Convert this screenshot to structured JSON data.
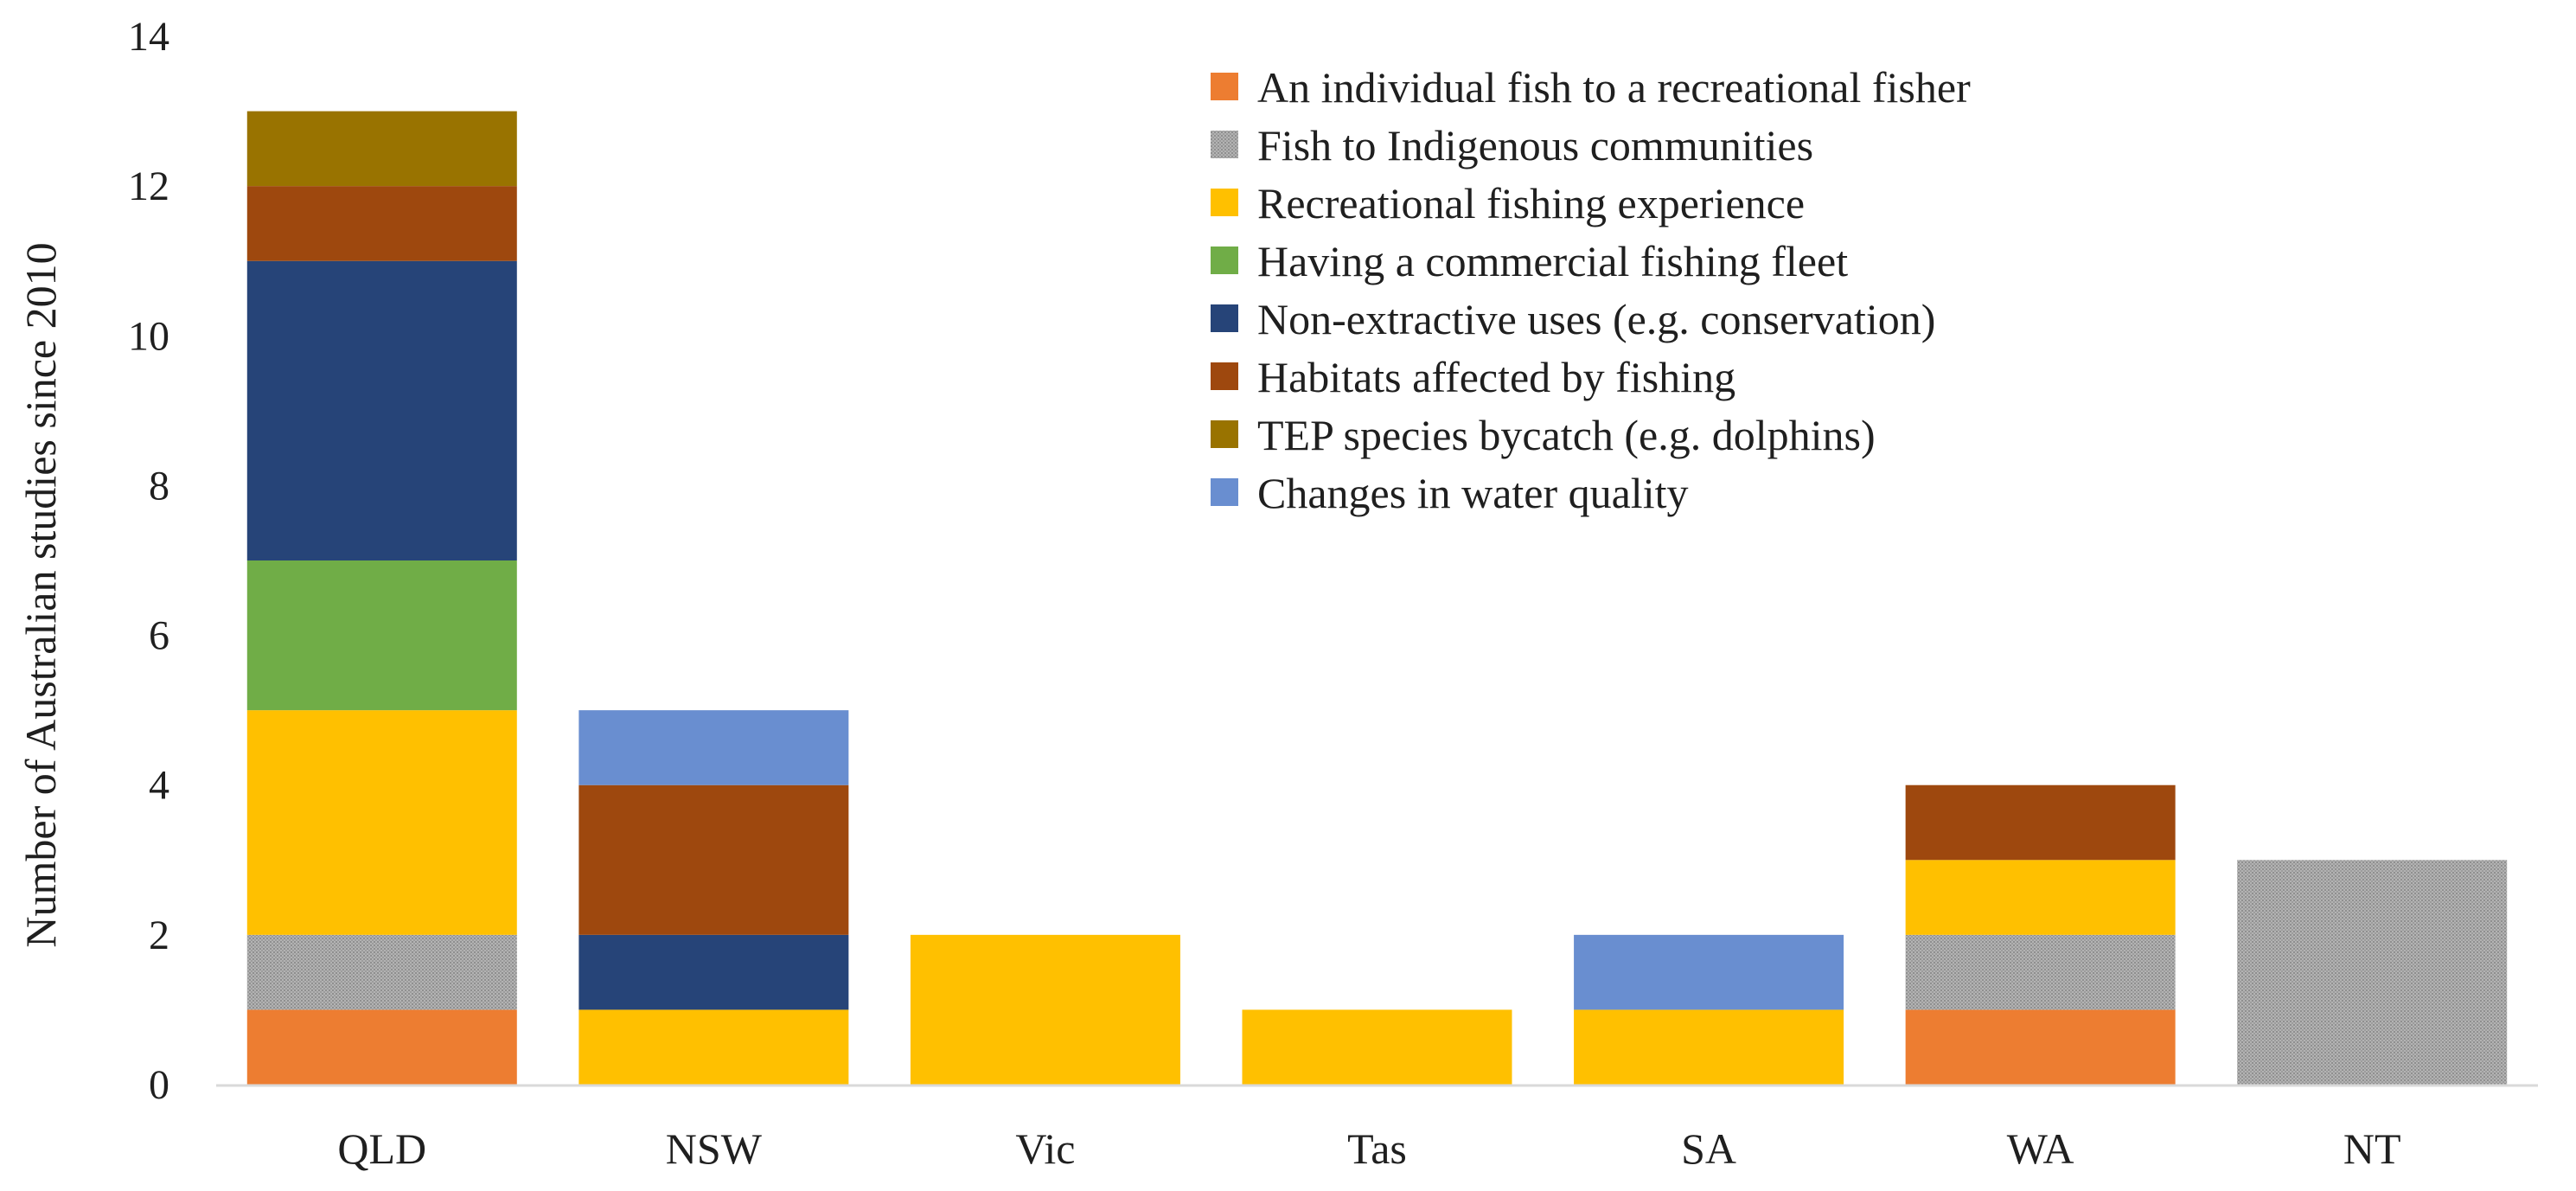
{
  "chart_data": {
    "type": "bar",
    "stacked": true,
    "categories": [
      "QLD",
      "NSW",
      "Vic",
      "Tas",
      "SA",
      "WA",
      "NT"
    ],
    "ylabel": "Number of Australian studies since 2010",
    "xlabel": "",
    "ylim": [
      0,
      14
    ],
    "yticks": [
      0,
      2,
      4,
      6,
      8,
      10,
      12,
      14
    ],
    "grid": false,
    "legend_position": "top-right",
    "series": [
      {
        "name": "An individual fish to a recreational fisher",
        "color": "#ED7D31",
        "pattern": "none",
        "values": [
          1,
          0,
          0,
          0,
          0,
          1,
          0
        ]
      },
      {
        "name": "Fish to Indigenous communities",
        "color": "#A5A5A5",
        "pattern": "stipple",
        "values": [
          1,
          0,
          0,
          0,
          0,
          1,
          3
        ]
      },
      {
        "name": "Recreational fishing experience",
        "color": "#FFC000",
        "pattern": "none",
        "values": [
          3,
          1,
          2,
          1,
          1,
          1,
          0
        ]
      },
      {
        "name": "Having a commercial fishing fleet",
        "color": "#70AD47",
        "pattern": "none",
        "values": [
          2,
          0,
          0,
          0,
          0,
          0,
          0
        ]
      },
      {
        "name": "Non-extractive uses (e.g. conservation)",
        "color": "#264478",
        "pattern": "none",
        "values": [
          4,
          1,
          0,
          0,
          0,
          0,
          0
        ]
      },
      {
        "name": "Habitats affected by fishing",
        "color": "#9E480E",
        "pattern": "none",
        "values": [
          1,
          2,
          0,
          0,
          0,
          1,
          0
        ]
      },
      {
        "name": "TEP species bycatch (e.g. dolphins)",
        "color": "#997300",
        "pattern": "none",
        "values": [
          1,
          0,
          0,
          0,
          0,
          0,
          0
        ]
      },
      {
        "name": "Changes in water quality",
        "color": "#698ED0",
        "pattern": "none",
        "values": [
          0,
          1,
          0,
          0,
          1,
          0,
          0
        ]
      }
    ]
  }
}
